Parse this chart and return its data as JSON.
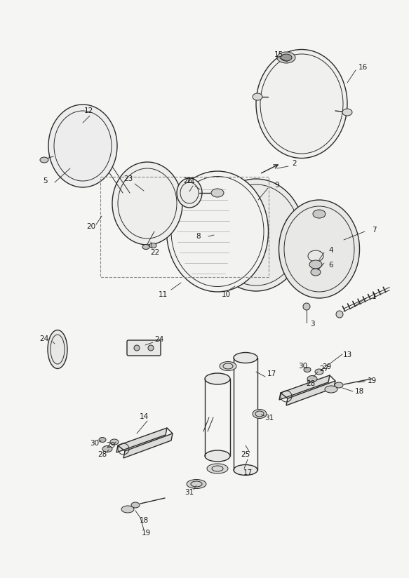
{
  "bg_color": "#f5f5f3",
  "line_color": "#2a2a2a",
  "label_color": "#1a1a1a",
  "fig_width": 5.83,
  "fig_height": 8.24,
  "dpi": 100
}
